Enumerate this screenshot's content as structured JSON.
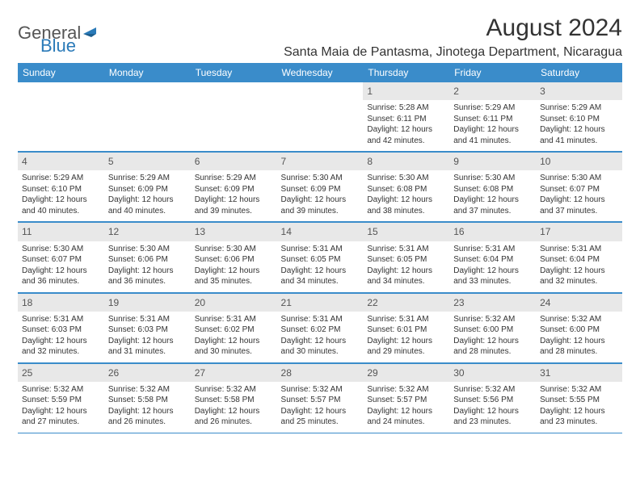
{
  "logo": {
    "word1": "General",
    "word2": "Blue"
  },
  "title": "August 2024",
  "location": "Santa Maia de Pantasma, Jinotega Department, Nicaragua",
  "colors": {
    "header_bg": "#3a8cca",
    "header_fg": "#ffffff",
    "daynum_bg": "#e8e8e8",
    "border": "#3a8cca",
    "logo_gray": "#555555",
    "logo_blue": "#2a7ab8",
    "text": "#333333",
    "page_bg": "#ffffff"
  },
  "day_headers": [
    "Sunday",
    "Monday",
    "Tuesday",
    "Wednesday",
    "Thursday",
    "Friday",
    "Saturday"
  ],
  "weeks": [
    [
      {
        "n": "",
        "sr": "",
        "ss": "",
        "dl": ""
      },
      {
        "n": "",
        "sr": "",
        "ss": "",
        "dl": ""
      },
      {
        "n": "",
        "sr": "",
        "ss": "",
        "dl": ""
      },
      {
        "n": "",
        "sr": "",
        "ss": "",
        "dl": ""
      },
      {
        "n": "1",
        "sr": "Sunrise: 5:28 AM",
        "ss": "Sunset: 6:11 PM",
        "dl": "Daylight: 12 hours and 42 minutes."
      },
      {
        "n": "2",
        "sr": "Sunrise: 5:29 AM",
        "ss": "Sunset: 6:11 PM",
        "dl": "Daylight: 12 hours and 41 minutes."
      },
      {
        "n": "3",
        "sr": "Sunrise: 5:29 AM",
        "ss": "Sunset: 6:10 PM",
        "dl": "Daylight: 12 hours and 41 minutes."
      }
    ],
    [
      {
        "n": "4",
        "sr": "Sunrise: 5:29 AM",
        "ss": "Sunset: 6:10 PM",
        "dl": "Daylight: 12 hours and 40 minutes."
      },
      {
        "n": "5",
        "sr": "Sunrise: 5:29 AM",
        "ss": "Sunset: 6:09 PM",
        "dl": "Daylight: 12 hours and 40 minutes."
      },
      {
        "n": "6",
        "sr": "Sunrise: 5:29 AM",
        "ss": "Sunset: 6:09 PM",
        "dl": "Daylight: 12 hours and 39 minutes."
      },
      {
        "n": "7",
        "sr": "Sunrise: 5:30 AM",
        "ss": "Sunset: 6:09 PM",
        "dl": "Daylight: 12 hours and 39 minutes."
      },
      {
        "n": "8",
        "sr": "Sunrise: 5:30 AM",
        "ss": "Sunset: 6:08 PM",
        "dl": "Daylight: 12 hours and 38 minutes."
      },
      {
        "n": "9",
        "sr": "Sunrise: 5:30 AM",
        "ss": "Sunset: 6:08 PM",
        "dl": "Daylight: 12 hours and 37 minutes."
      },
      {
        "n": "10",
        "sr": "Sunrise: 5:30 AM",
        "ss": "Sunset: 6:07 PM",
        "dl": "Daylight: 12 hours and 37 minutes."
      }
    ],
    [
      {
        "n": "11",
        "sr": "Sunrise: 5:30 AM",
        "ss": "Sunset: 6:07 PM",
        "dl": "Daylight: 12 hours and 36 minutes."
      },
      {
        "n": "12",
        "sr": "Sunrise: 5:30 AM",
        "ss": "Sunset: 6:06 PM",
        "dl": "Daylight: 12 hours and 36 minutes."
      },
      {
        "n": "13",
        "sr": "Sunrise: 5:30 AM",
        "ss": "Sunset: 6:06 PM",
        "dl": "Daylight: 12 hours and 35 minutes."
      },
      {
        "n": "14",
        "sr": "Sunrise: 5:31 AM",
        "ss": "Sunset: 6:05 PM",
        "dl": "Daylight: 12 hours and 34 minutes."
      },
      {
        "n": "15",
        "sr": "Sunrise: 5:31 AM",
        "ss": "Sunset: 6:05 PM",
        "dl": "Daylight: 12 hours and 34 minutes."
      },
      {
        "n": "16",
        "sr": "Sunrise: 5:31 AM",
        "ss": "Sunset: 6:04 PM",
        "dl": "Daylight: 12 hours and 33 minutes."
      },
      {
        "n": "17",
        "sr": "Sunrise: 5:31 AM",
        "ss": "Sunset: 6:04 PM",
        "dl": "Daylight: 12 hours and 32 minutes."
      }
    ],
    [
      {
        "n": "18",
        "sr": "Sunrise: 5:31 AM",
        "ss": "Sunset: 6:03 PM",
        "dl": "Daylight: 12 hours and 32 minutes."
      },
      {
        "n": "19",
        "sr": "Sunrise: 5:31 AM",
        "ss": "Sunset: 6:03 PM",
        "dl": "Daylight: 12 hours and 31 minutes."
      },
      {
        "n": "20",
        "sr": "Sunrise: 5:31 AM",
        "ss": "Sunset: 6:02 PM",
        "dl": "Daylight: 12 hours and 30 minutes."
      },
      {
        "n": "21",
        "sr": "Sunrise: 5:31 AM",
        "ss": "Sunset: 6:02 PM",
        "dl": "Daylight: 12 hours and 30 minutes."
      },
      {
        "n": "22",
        "sr": "Sunrise: 5:31 AM",
        "ss": "Sunset: 6:01 PM",
        "dl": "Daylight: 12 hours and 29 minutes."
      },
      {
        "n": "23",
        "sr": "Sunrise: 5:32 AM",
        "ss": "Sunset: 6:00 PM",
        "dl": "Daylight: 12 hours and 28 minutes."
      },
      {
        "n": "24",
        "sr": "Sunrise: 5:32 AM",
        "ss": "Sunset: 6:00 PM",
        "dl": "Daylight: 12 hours and 28 minutes."
      }
    ],
    [
      {
        "n": "25",
        "sr": "Sunrise: 5:32 AM",
        "ss": "Sunset: 5:59 PM",
        "dl": "Daylight: 12 hours and 27 minutes."
      },
      {
        "n": "26",
        "sr": "Sunrise: 5:32 AM",
        "ss": "Sunset: 5:58 PM",
        "dl": "Daylight: 12 hours and 26 minutes."
      },
      {
        "n": "27",
        "sr": "Sunrise: 5:32 AM",
        "ss": "Sunset: 5:58 PM",
        "dl": "Daylight: 12 hours and 26 minutes."
      },
      {
        "n": "28",
        "sr": "Sunrise: 5:32 AM",
        "ss": "Sunset: 5:57 PM",
        "dl": "Daylight: 12 hours and 25 minutes."
      },
      {
        "n": "29",
        "sr": "Sunrise: 5:32 AM",
        "ss": "Sunset: 5:57 PM",
        "dl": "Daylight: 12 hours and 24 minutes."
      },
      {
        "n": "30",
        "sr": "Sunrise: 5:32 AM",
        "ss": "Sunset: 5:56 PM",
        "dl": "Daylight: 12 hours and 23 minutes."
      },
      {
        "n": "31",
        "sr": "Sunrise: 5:32 AM",
        "ss": "Sunset: 5:55 PM",
        "dl": "Daylight: 12 hours and 23 minutes."
      }
    ]
  ]
}
